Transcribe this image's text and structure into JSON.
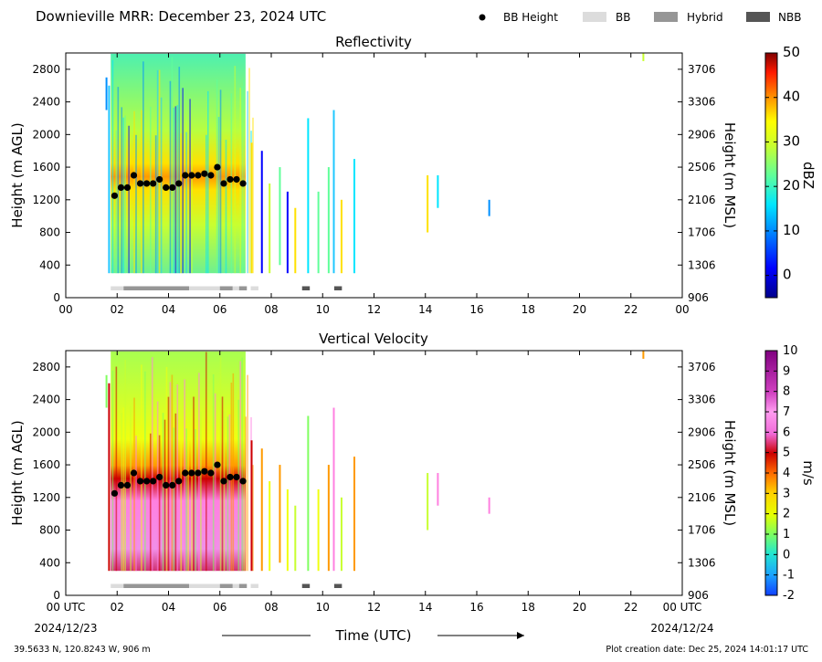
{
  "header": {
    "title": "Downieville MRR:  December 23, 2024 UTC",
    "legend": [
      {
        "label": "BB Height",
        "kind": "dot",
        "color": "#000000"
      },
      {
        "label": "BB",
        "kind": "bar",
        "color": "#dcdcdc"
      },
      {
        "label": "Hybrid",
        "kind": "bar",
        "color": "#969696"
      },
      {
        "label": "NBB",
        "kind": "bar",
        "color": "#555555"
      }
    ]
  },
  "footer": {
    "location": "39.5633 N, 120.8243 W, 906 m",
    "creation": "Plot creation date: Dec 25, 2024 14:01:17 UTC",
    "xlabel": "Time (UTC)",
    "start_date": "2024/12/23",
    "end_date": "2024/12/24"
  },
  "chart_data": [
    {
      "type": "heatmap",
      "title": "Reflectivity",
      "ylabel": "Height (m AGL)",
      "ylabel_right": "Height (m MSL)",
      "xlim": [
        0,
        24
      ],
      "ylim": [
        0,
        3000
      ],
      "xticks": [
        "00",
        "02",
        "04",
        "06",
        "08",
        "10",
        "12",
        "14",
        "16",
        "18",
        "20",
        "22",
        "00"
      ],
      "yticks": [
        0,
        400,
        800,
        1200,
        1600,
        2000,
        2400,
        2800
      ],
      "yticks_right": [
        "906",
        "1306",
        "1706",
        "2106",
        "2506",
        "2906",
        "3306",
        "3706"
      ],
      "colorbar": {
        "label": "dBZ",
        "range": [
          -5,
          50
        ],
        "ticks": [
          "0",
          "10",
          "20",
          "30",
          "40",
          "50"
        ]
      },
      "bb_height": [
        [
          1.9,
          1250
        ],
        [
          2.15,
          1350
        ],
        [
          2.4,
          1350
        ],
        [
          2.65,
          1500
        ],
        [
          2.9,
          1400
        ],
        [
          3.15,
          1400
        ],
        [
          3.4,
          1400
        ],
        [
          3.65,
          1450
        ],
        [
          3.9,
          1350
        ],
        [
          4.15,
          1350
        ],
        [
          4.4,
          1400
        ],
        [
          4.65,
          1500
        ],
        [
          4.9,
          1500
        ],
        [
          5.15,
          1500
        ],
        [
          5.4,
          1520
        ],
        [
          5.65,
          1500
        ],
        [
          5.9,
          1600
        ],
        [
          6.15,
          1400
        ],
        [
          6.4,
          1450
        ],
        [
          6.65,
          1450
        ],
        [
          6.9,
          1400
        ]
      ],
      "bb_segments": [
        {
          "start": 1.75,
          "end": 2.25,
          "type": "BB"
        },
        {
          "start": 2.25,
          "end": 4.8,
          "type": "Hybrid"
        },
        {
          "start": 4.8,
          "end": 6.0,
          "type": "BB"
        },
        {
          "start": 6.0,
          "end": 6.5,
          "type": "Hybrid"
        },
        {
          "start": 6.5,
          "end": 6.75,
          "type": "BB"
        },
        {
          "start": 6.75,
          "end": 7.05,
          "type": "Hybrid"
        },
        {
          "start": 7.2,
          "end": 7.5,
          "type": "BB"
        },
        {
          "start": 9.2,
          "end": 9.5,
          "type": "NBB"
        },
        {
          "start": 10.45,
          "end": 10.75,
          "type": "NBB"
        }
      ]
    },
    {
      "type": "heatmap",
      "title": "Vertical Velocity",
      "ylabel": "Height (m AGL)",
      "ylabel_right": "Height (m MSL)",
      "xlim": [
        0,
        24
      ],
      "ylim": [
        0,
        3000
      ],
      "xticks": [
        "00 UTC",
        "02",
        "04",
        "06",
        "08",
        "10",
        "12",
        "14",
        "16",
        "18",
        "20",
        "22",
        "00 UTC"
      ],
      "yticks": [
        0,
        400,
        800,
        1200,
        1600,
        2000,
        2400,
        2800
      ],
      "yticks_right": [
        "906",
        "1306",
        "1706",
        "2106",
        "2506",
        "2906",
        "3306",
        "3706"
      ],
      "colorbar": {
        "label": "m/s",
        "range": [
          -2,
          10
        ],
        "ticks": [
          "-2",
          "-1",
          "0",
          "1",
          "2",
          "3",
          "4",
          "5",
          "6",
          "7",
          "8",
          "9",
          "10"
        ]
      },
      "bb_height": [
        [
          1.9,
          1250
        ],
        [
          2.15,
          1350
        ],
        [
          2.4,
          1350
        ],
        [
          2.65,
          1500
        ],
        [
          2.9,
          1400
        ],
        [
          3.15,
          1400
        ],
        [
          3.4,
          1400
        ],
        [
          3.65,
          1450
        ],
        [
          3.9,
          1350
        ],
        [
          4.15,
          1350
        ],
        [
          4.4,
          1400
        ],
        [
          4.65,
          1500
        ],
        [
          4.9,
          1500
        ],
        [
          5.15,
          1500
        ],
        [
          5.4,
          1520
        ],
        [
          5.65,
          1500
        ],
        [
          5.9,
          1600
        ],
        [
          6.15,
          1400
        ],
        [
          6.4,
          1450
        ],
        [
          6.65,
          1450
        ],
        [
          6.9,
          1400
        ]
      ],
      "bb_segments": [
        {
          "start": 1.75,
          "end": 2.25,
          "type": "BB"
        },
        {
          "start": 2.25,
          "end": 4.8,
          "type": "Hybrid"
        },
        {
          "start": 4.8,
          "end": 6.0,
          "type": "BB"
        },
        {
          "start": 6.0,
          "end": 6.5,
          "type": "Hybrid"
        },
        {
          "start": 6.5,
          "end": 6.75,
          "type": "BB"
        },
        {
          "start": 6.75,
          "end": 7.05,
          "type": "Hybrid"
        },
        {
          "start": 7.2,
          "end": 7.5,
          "type": "BB"
        },
        {
          "start": 9.2,
          "end": 9.5,
          "type": "NBB"
        },
        {
          "start": 10.45,
          "end": 10.75,
          "type": "NBB"
        }
      ]
    }
  ]
}
